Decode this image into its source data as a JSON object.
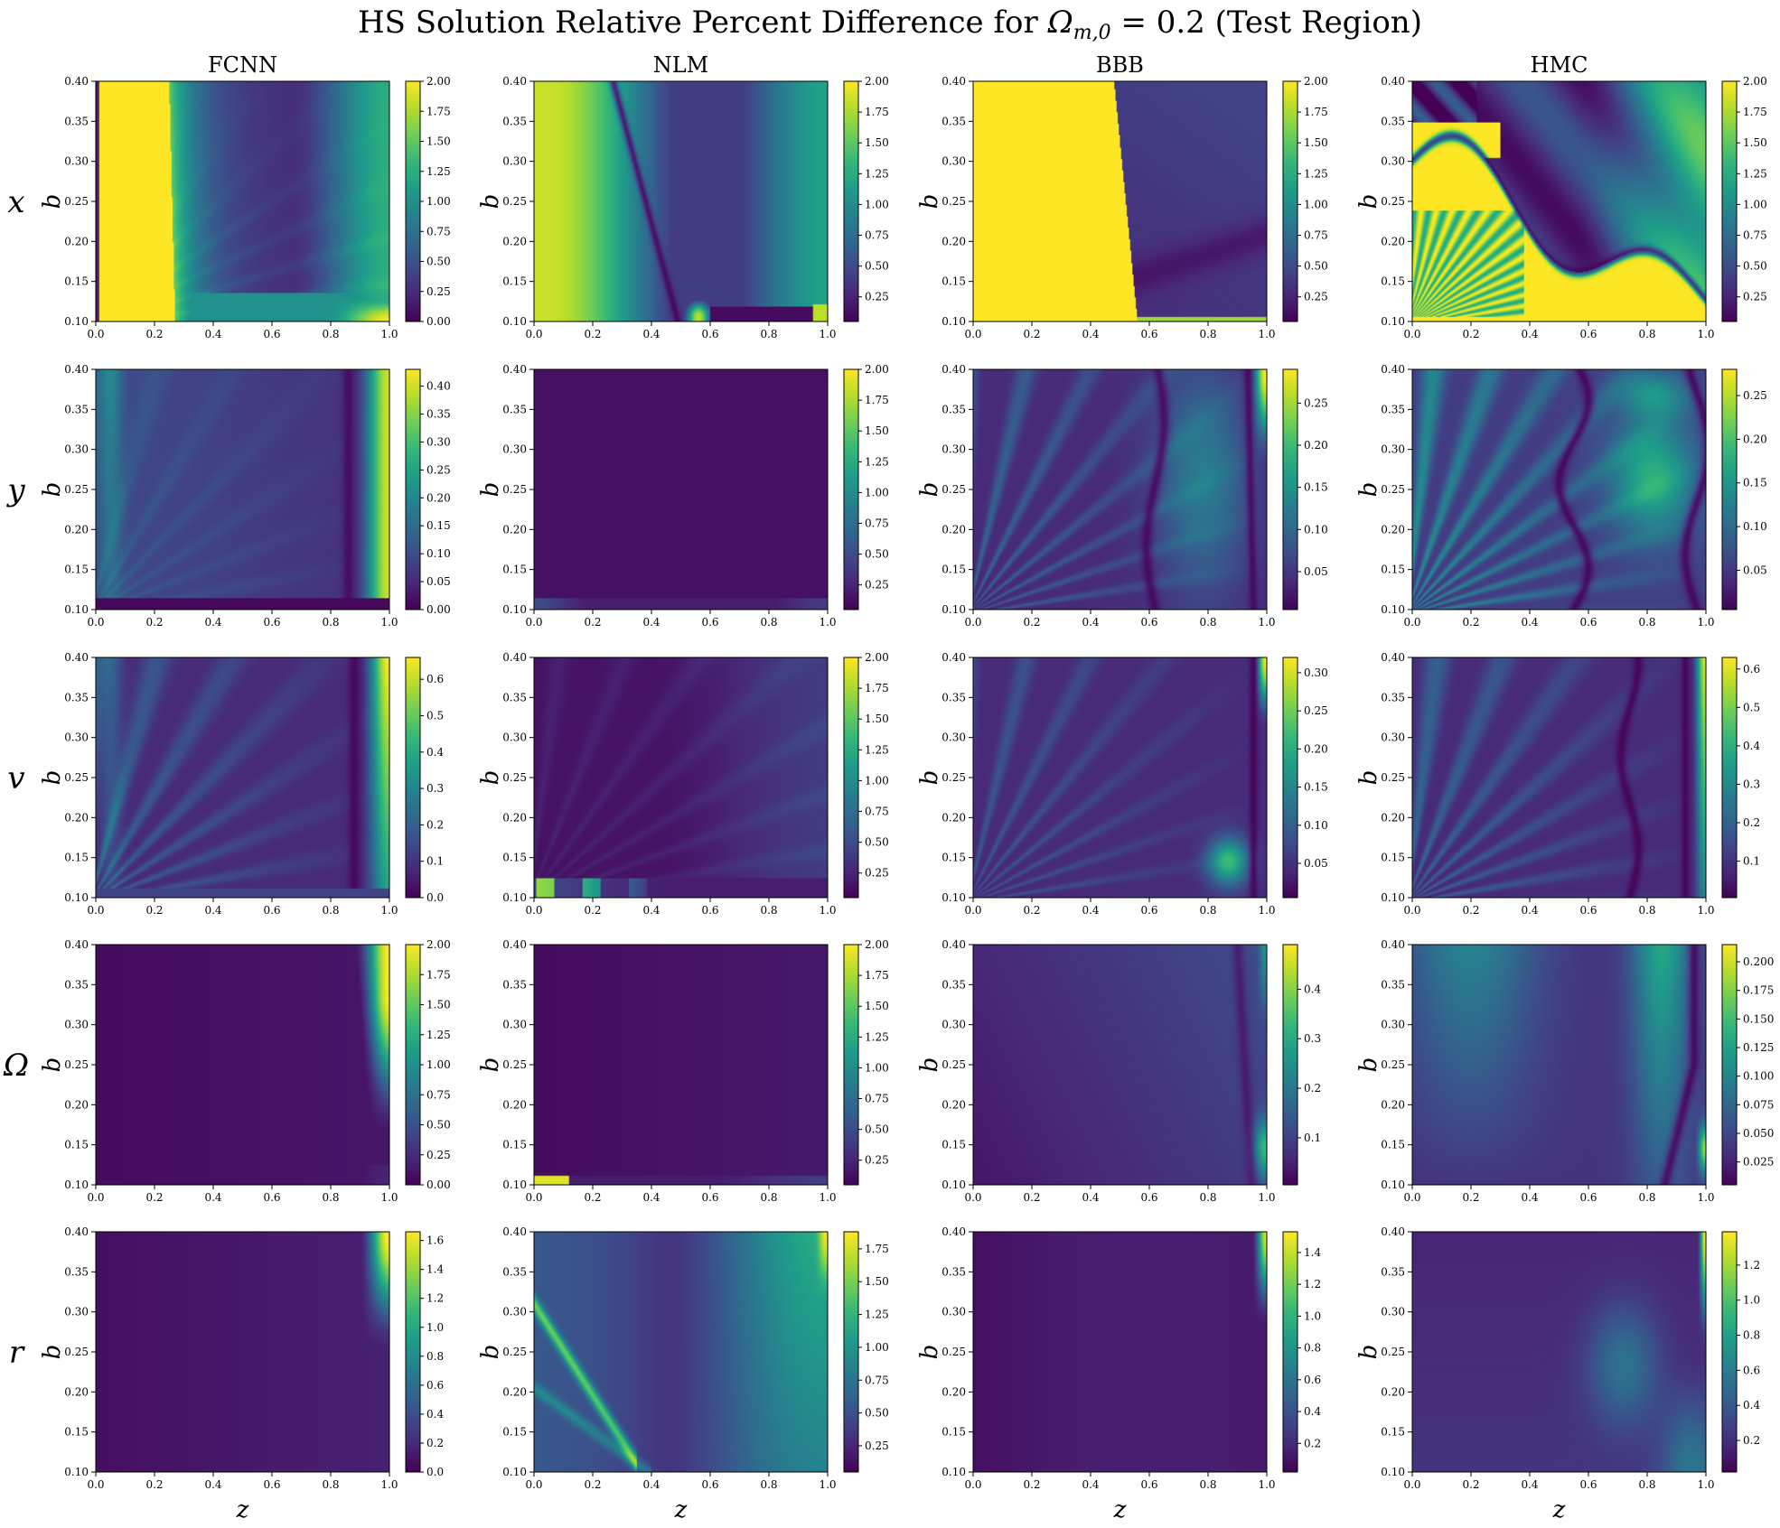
{
  "title": "HS Solution Relative Percent Difference for Ωm,0 = 0.2 (Test Region)",
  "title_main": "HS Solution Relative Percent Difference for ",
  "title_math": "Ω",
  "title_sub": "m,0",
  "title_tail": " = 0.2 (Test Region)",
  "colormap": "viridis",
  "colors": {
    "viridis_low": "#440154",
    "viridis_mid": "#21918c",
    "viridis_high": "#fde725"
  },
  "columns": [
    "FCNN",
    "NLM",
    "BBB",
    "HMC"
  ],
  "rows": [
    "x",
    "y",
    "v",
    "Ω",
    "r"
  ],
  "xlabel": "z",
  "ylabel": "b",
  "x_ticks": [
    "0.0",
    "0.2",
    "0.4",
    "0.6",
    "0.8",
    "1.0"
  ],
  "y_ticks": [
    "0.10",
    "0.15",
    "0.20",
    "0.25",
    "0.30",
    "0.35",
    "0.40"
  ],
  "chart_data": [
    {
      "type": "heatmap",
      "row": "x",
      "column": "FCNN",
      "xlim": [
        0,
        1
      ],
      "ylim": [
        0.1,
        0.4
      ],
      "colorbar_range": [
        0,
        2.0
      ],
      "colorbar_ticks": [
        "0.00",
        "0.25",
        "0.50",
        "0.75",
        "1.00",
        "1.25",
        "1.50",
        "1.75",
        "2.00"
      ],
      "pattern": "x_fcnn"
    },
    {
      "type": "heatmap",
      "row": "x",
      "column": "NLM",
      "xlim": [
        0,
        1
      ],
      "ylim": [
        0.1,
        0.4
      ],
      "colorbar_range": [
        0.05,
        2.0
      ],
      "colorbar_ticks": [
        "0.25",
        "0.50",
        "0.75",
        "1.00",
        "1.25",
        "1.50",
        "1.75",
        "2.00"
      ],
      "pattern": "x_nlm"
    },
    {
      "type": "heatmap",
      "row": "x",
      "column": "BBB",
      "xlim": [
        0,
        1
      ],
      "ylim": [
        0.1,
        0.4
      ],
      "colorbar_range": [
        0.05,
        2.0
      ],
      "colorbar_ticks": [
        "0.25",
        "0.50",
        "0.75",
        "1.00",
        "1.25",
        "1.50",
        "1.75",
        "2.00"
      ],
      "pattern": "x_bbb"
    },
    {
      "type": "heatmap",
      "row": "x",
      "column": "HMC",
      "xlim": [
        0,
        1
      ],
      "ylim": [
        0.1,
        0.4
      ],
      "colorbar_range": [
        0.05,
        2.0
      ],
      "colorbar_ticks": [
        "0.25",
        "0.50",
        "0.75",
        "1.00",
        "1.25",
        "1.50",
        "1.75",
        "2.00"
      ],
      "pattern": "x_hmc"
    },
    {
      "type": "heatmap",
      "row": "y",
      "column": "FCNN",
      "xlim": [
        0,
        1
      ],
      "ylim": [
        0.1,
        0.4
      ],
      "colorbar_range": [
        0,
        0.43
      ],
      "colorbar_ticks": [
        "0.00",
        "0.05",
        "0.10",
        "0.15",
        "0.20",
        "0.25",
        "0.30",
        "0.35",
        "0.40"
      ],
      "pattern": "y_fcnn"
    },
    {
      "type": "heatmap",
      "row": "y",
      "column": "NLM",
      "xlim": [
        0,
        1
      ],
      "ylim": [
        0.1,
        0.4
      ],
      "colorbar_range": [
        0.05,
        2.0
      ],
      "colorbar_ticks": [
        "0.25",
        "0.50",
        "0.75",
        "1.00",
        "1.25",
        "1.50",
        "1.75",
        "2.00"
      ],
      "pattern": "y_nlm"
    },
    {
      "type": "heatmap",
      "row": "y",
      "column": "BBB",
      "xlim": [
        0,
        1
      ],
      "ylim": [
        0.1,
        0.4
      ],
      "colorbar_range": [
        0.005,
        0.29
      ],
      "colorbar_ticks": [
        "0.05",
        "0.10",
        "0.15",
        "0.20",
        "0.25"
      ],
      "pattern": "y_bbb"
    },
    {
      "type": "heatmap",
      "row": "y",
      "column": "HMC",
      "xlim": [
        0,
        1
      ],
      "ylim": [
        0.1,
        0.4
      ],
      "colorbar_range": [
        0.005,
        0.28
      ],
      "colorbar_ticks": [
        "0.05",
        "0.10",
        "0.15",
        "0.20",
        "0.25"
      ],
      "pattern": "y_hmc"
    },
    {
      "type": "heatmap",
      "row": "v",
      "column": "FCNN",
      "xlim": [
        0,
        1
      ],
      "ylim": [
        0.1,
        0.4
      ],
      "colorbar_range": [
        0,
        0.66
      ],
      "colorbar_ticks": [
        "0.0",
        "0.1",
        "0.2",
        "0.3",
        "0.4",
        "0.5",
        "0.6"
      ],
      "pattern": "v_fcnn"
    },
    {
      "type": "heatmap",
      "row": "v",
      "column": "NLM",
      "xlim": [
        0,
        1
      ],
      "ylim": [
        0.1,
        0.4
      ],
      "colorbar_range": [
        0.05,
        2.0
      ],
      "colorbar_ticks": [
        "0.25",
        "0.50",
        "0.75",
        "1.00",
        "1.25",
        "1.50",
        "1.75",
        "2.00"
      ],
      "pattern": "v_nlm"
    },
    {
      "type": "heatmap",
      "row": "v",
      "column": "BBB",
      "xlim": [
        0,
        1
      ],
      "ylim": [
        0.1,
        0.4
      ],
      "colorbar_range": [
        0.005,
        0.32
      ],
      "colorbar_ticks": [
        "0.05",
        "0.10",
        "0.15",
        "0.20",
        "0.25",
        "0.30"
      ],
      "pattern": "v_bbb"
    },
    {
      "type": "heatmap",
      "row": "v",
      "column": "HMC",
      "xlim": [
        0,
        1
      ],
      "ylim": [
        0.1,
        0.4
      ],
      "colorbar_range": [
        0.005,
        0.63
      ],
      "colorbar_ticks": [
        "0.1",
        "0.2",
        "0.3",
        "0.4",
        "0.5",
        "0.6"
      ],
      "pattern": "v_hmc"
    },
    {
      "type": "heatmap",
      "row": "Ω",
      "column": "FCNN",
      "xlim": [
        0,
        1
      ],
      "ylim": [
        0.1,
        0.4
      ],
      "colorbar_range": [
        0,
        2.0
      ],
      "colorbar_ticks": [
        "0.00",
        "0.25",
        "0.50",
        "0.75",
        "1.00",
        "1.25",
        "1.50",
        "1.75",
        "2.00"
      ],
      "pattern": "o_fcnn"
    },
    {
      "type": "heatmap",
      "row": "Ω",
      "column": "NLM",
      "xlim": [
        0,
        1
      ],
      "ylim": [
        0.1,
        0.4
      ],
      "colorbar_range": [
        0.05,
        2.0
      ],
      "colorbar_ticks": [
        "0.25",
        "0.50",
        "0.75",
        "1.00",
        "1.25",
        "1.50",
        "1.75",
        "2.00"
      ],
      "pattern": "o_nlm"
    },
    {
      "type": "heatmap",
      "row": "Ω",
      "column": "BBB",
      "xlim": [
        0,
        1
      ],
      "ylim": [
        0.1,
        0.4
      ],
      "colorbar_range": [
        0.005,
        0.49
      ],
      "colorbar_ticks": [
        "0.1",
        "0.2",
        "0.3",
        "0.4"
      ],
      "pattern": "o_bbb"
    },
    {
      "type": "heatmap",
      "row": "Ω",
      "column": "HMC",
      "xlim": [
        0,
        1
      ],
      "ylim": [
        0.1,
        0.4
      ],
      "colorbar_range": [
        0.005,
        0.215
      ],
      "colorbar_ticks": [
        "0.025",
        "0.050",
        "0.075",
        "0.100",
        "0.125",
        "0.150",
        "0.175",
        "0.200"
      ],
      "pattern": "o_hmc"
    },
    {
      "type": "heatmap",
      "row": "r",
      "column": "FCNN",
      "xlim": [
        0,
        1
      ],
      "ylim": [
        0.1,
        0.4
      ],
      "colorbar_range": [
        0,
        1.66
      ],
      "colorbar_ticks": [
        "0.0",
        "0.2",
        "0.4",
        "0.6",
        "0.8",
        "1.0",
        "1.2",
        "1.4",
        "1.6"
      ],
      "pattern": "r_fcnn"
    },
    {
      "type": "heatmap",
      "row": "r",
      "column": "NLM",
      "xlim": [
        0,
        1
      ],
      "ylim": [
        0.1,
        0.4
      ],
      "colorbar_range": [
        0.05,
        1.88
      ],
      "colorbar_ticks": [
        "0.25",
        "0.50",
        "0.75",
        "1.00",
        "1.25",
        "1.50",
        "1.75"
      ],
      "pattern": "r_nlm"
    },
    {
      "type": "heatmap",
      "row": "r",
      "column": "BBB",
      "xlim": [
        0,
        1
      ],
      "ylim": [
        0.1,
        0.4
      ],
      "colorbar_range": [
        0.02,
        1.53
      ],
      "colorbar_ticks": [
        "0.2",
        "0.4",
        "0.6",
        "0.8",
        "1.0",
        "1.2",
        "1.4"
      ],
      "pattern": "r_bbb"
    },
    {
      "type": "heatmap",
      "row": "r",
      "column": "HMC",
      "xlim": [
        0,
        1
      ],
      "ylim": [
        0.1,
        0.4
      ],
      "colorbar_range": [
        0.02,
        1.39
      ],
      "colorbar_ticks": [
        "0.2",
        "0.4",
        "0.6",
        "0.8",
        "1.0",
        "1.2"
      ],
      "pattern": "r_hmc"
    }
  ]
}
